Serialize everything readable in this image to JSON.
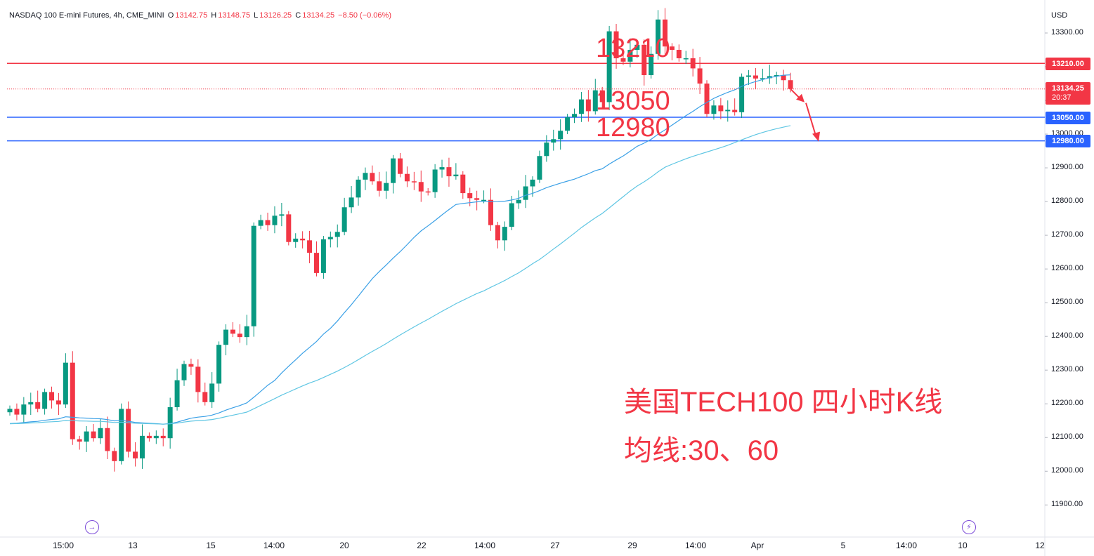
{
  "legend": {
    "symbol": "NASDAQ 100 E-mini Futures, 4h, CME_MINI",
    "o_label": "O",
    "o_value": "13142.75",
    "h_label": "H",
    "h_value": "13148.75",
    "l_label": "L",
    "l_value": "13126.25",
    "c_label": "C",
    "c_value": "13134.25",
    "change": "−8.50 (−0.06%)"
  },
  "currency": "USD",
  "price_badges": {
    "resistance": "13210.00",
    "last": "13134.25",
    "countdown": "20:37",
    "support1": "13050.00",
    "support2": "12980.00"
  },
  "level_labels": {
    "resistance": "13210",
    "support1": "13050",
    "support2": "12980"
  },
  "annotation": {
    "line1": "美国TECH100 四小时K线",
    "line2": "均线:30、60"
  },
  "markers": {
    "left": "→",
    "right": "⚡"
  },
  "colors": {
    "up": "#089981",
    "down": "#f23645",
    "ma30": "#3aa0e6",
    "ma60": "#5fc6e3",
    "resistance": "#f23645",
    "support": "#2962ff"
  },
  "chart_data": {
    "type": "candlestick",
    "title": "NASDAQ 100 E-mini Futures, 4h, CME_MINI",
    "ylabel": "USD",
    "ylim": [
      11800,
      13350
    ],
    "y_ticks": [
      "13300.00",
      "13200.00",
      "13100.00",
      "13000.00",
      "12900.00",
      "12800.00",
      "12700.00",
      "12600.00",
      "12500.00",
      "12400.00",
      "12300.00",
      "12200.00",
      "12100.00",
      "12000.00",
      "11900.00"
    ],
    "x_ticks": [
      "15:00",
      "13",
      "15",
      "14:00",
      "20",
      "22",
      "14:00",
      "27",
      "29",
      "14:00",
      "Apr",
      "5",
      "14:00",
      "10",
      "12"
    ],
    "horizontal_levels": [
      13210,
      13050,
      12980
    ],
    "series": [
      {
        "name": "Price",
        "values": [
          12185,
          12168,
          12198,
          12205,
          12185,
          12235,
          12210,
          12198,
          12322,
          12095,
          12088,
          12118,
          12098,
          12128,
          12060,
          12030,
          12185,
          12058,
          12038,
          12105,
          12098,
          12105,
          12098,
          12190,
          12270,
          12318,
          12310,
          12235,
          12205,
          12260,
          12375,
          12420,
          12408,
          12398,
          12430,
          12728,
          12745,
          12730,
          12758,
          12762,
          12680,
          12690,
          12685,
          12648,
          12588,
          12688,
          12695,
          12710,
          12783,
          12812,
          12865,
          12885,
          12860,
          12832,
          12855,
          12928,
          12882,
          12860,
          12858,
          12830,
          12828,
          12895,
          12902,
          12875,
          12880,
          12825,
          12810,
          12805,
          12805,
          12730,
          12685,
          12725,
          12795,
          12805,
          12845,
          12865,
          12935,
          12975,
          12985,
          13010,
          13050,
          13060,
          13103,
          13068,
          13130,
          13095,
          13305,
          13225,
          13215,
          13250,
          13265,
          13175,
          13238,
          13340,
          13260,
          13250,
          13225,
          13225,
          13195,
          13150,
          13060,
          13085,
          13068,
          13072,
          13065,
          13170,
          13174,
          13165,
          13166,
          13172,
          13175,
          13160,
          13134
        ]
      }
    ]
  }
}
